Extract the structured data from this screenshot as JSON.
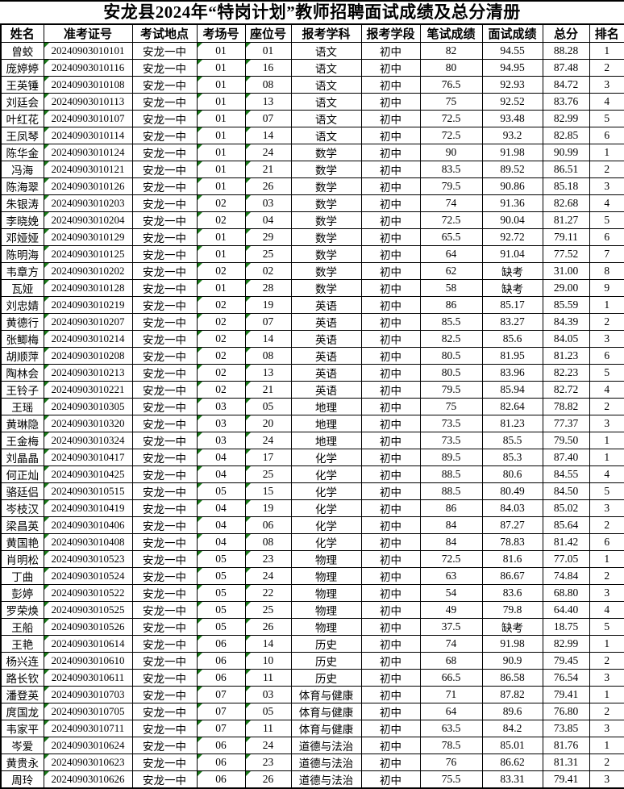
{
  "title": "安龙县2024年“特岗计划”教师招聘面试成绩及总分清册",
  "colors": {
    "flag_triangle": "#1a7a1a",
    "border": "#000000",
    "background": "#ffffff",
    "text": "#000000"
  },
  "table": {
    "headers": [
      "姓名",
      "准考证号",
      "考试地点",
      "考场号",
      "座位号",
      "报考学科",
      "报考学段",
      "笔试成绩",
      "面试成绩",
      "总分",
      "排名"
    ],
    "absent_label": "缺考",
    "rows": [
      [
        "曾蛟",
        "20240903010101",
        "安龙一中",
        "01",
        "01",
        "语文",
        "初中",
        "82",
        "94.55",
        "88.28",
        "1"
      ],
      [
        "庞婷婷",
        "20240903010116",
        "安龙一中",
        "01",
        "16",
        "语文",
        "初中",
        "80",
        "94.95",
        "87.48",
        "2"
      ],
      [
        "王英锤",
        "20240903010108",
        "安龙一中",
        "01",
        "08",
        "语文",
        "初中",
        "76.5",
        "92.93",
        "84.72",
        "3"
      ],
      [
        "刘廷会",
        "20240903010113",
        "安龙一中",
        "01",
        "13",
        "语文",
        "初中",
        "75",
        "92.52",
        "83.76",
        "4"
      ],
      [
        "叶红花",
        "20240903010107",
        "安龙一中",
        "01",
        "07",
        "语文",
        "初中",
        "72.5",
        "93.48",
        "82.99",
        "5"
      ],
      [
        "王凤琴",
        "20240903010114",
        "安龙一中",
        "01",
        "14",
        "语文",
        "初中",
        "72.5",
        "93.2",
        "82.85",
        "6"
      ],
      [
        "陈华金",
        "20240903010124",
        "安龙一中",
        "01",
        "24",
        "数学",
        "初中",
        "90",
        "91.98",
        "90.99",
        "1"
      ],
      [
        "冯海",
        "20240903010121",
        "安龙一中",
        "01",
        "21",
        "数学",
        "初中",
        "83.5",
        "89.52",
        "86.51",
        "2"
      ],
      [
        "陈海翠",
        "20240903010126",
        "安龙一中",
        "01",
        "26",
        "数学",
        "初中",
        "79.5",
        "90.86",
        "85.18",
        "3"
      ],
      [
        "朱银涛",
        "20240903010203",
        "安龙一中",
        "02",
        "03",
        "数学",
        "初中",
        "74",
        "91.36",
        "82.68",
        "4"
      ],
      [
        "李晓娩",
        "20240903010204",
        "安龙一中",
        "02",
        "04",
        "数学",
        "初中",
        "72.5",
        "90.04",
        "81.27",
        "5"
      ],
      [
        "邓娅娅",
        "20240903010129",
        "安龙一中",
        "01",
        "29",
        "数学",
        "初中",
        "65.5",
        "92.72",
        "79.11",
        "6"
      ],
      [
        "陈明海",
        "20240903010125",
        "安龙一中",
        "01",
        "25",
        "数学",
        "初中",
        "64",
        "91.04",
        "77.52",
        "7"
      ],
      [
        "韦章方",
        "20240903010202",
        "安龙一中",
        "02",
        "02",
        "数学",
        "初中",
        "62",
        "缺考",
        "31.00",
        "8"
      ],
      [
        "瓦娅",
        "20240903010128",
        "安龙一中",
        "01",
        "28",
        "数学",
        "初中",
        "58",
        "缺考",
        "29.00",
        "9"
      ],
      [
        "刘忠婧",
        "20240903010219",
        "安龙一中",
        "02",
        "19",
        "英语",
        "初中",
        "86",
        "85.17",
        "85.59",
        "1"
      ],
      [
        "黄德行",
        "20240903010207",
        "安龙一中",
        "02",
        "07",
        "英语",
        "初中",
        "85.5",
        "83.27",
        "84.39",
        "2"
      ],
      [
        "张鲫梅",
        "20240903010214",
        "安龙一中",
        "02",
        "14",
        "英语",
        "初中",
        "82.5",
        "85.6",
        "84.05",
        "3"
      ],
      [
        "胡顺萍",
        "20240903010208",
        "安龙一中",
        "02",
        "08",
        "英语",
        "初中",
        "80.5",
        "81.95",
        "81.23",
        "6"
      ],
      [
        "陶林会",
        "20240903010213",
        "安龙一中",
        "02",
        "13",
        "英语",
        "初中",
        "80.5",
        "83.96",
        "82.23",
        "5"
      ],
      [
        "王铃子",
        "20240903010221",
        "安龙一中",
        "02",
        "21",
        "英语",
        "初中",
        "79.5",
        "85.94",
        "82.72",
        "4"
      ],
      [
        "王瑶",
        "20240903010305",
        "安龙一中",
        "03",
        "05",
        "地理",
        "初中",
        "75",
        "82.64",
        "78.82",
        "2"
      ],
      [
        "黄琳隐",
        "20240903010320",
        "安龙一中",
        "03",
        "20",
        "地理",
        "初中",
        "73.5",
        "81.23",
        "77.37",
        "3"
      ],
      [
        "王金梅",
        "20240903010324",
        "安龙一中",
        "03",
        "24",
        "地理",
        "初中",
        "73.5",
        "85.5",
        "79.50",
        "1"
      ],
      [
        "刘晶晶",
        "20240903010417",
        "安龙一中",
        "04",
        "17",
        "化学",
        "初中",
        "89.5",
        "85.3",
        "87.40",
        "1"
      ],
      [
        "何正灿",
        "20240903010425",
        "安龙一中",
        "04",
        "25",
        "化学",
        "初中",
        "88.5",
        "80.6",
        "84.55",
        "4"
      ],
      [
        "骆廷侣",
        "20240903010515",
        "安龙一中",
        "05",
        "15",
        "化学",
        "初中",
        "88.5",
        "80.49",
        "84.50",
        "5"
      ],
      [
        "岑枝汉",
        "20240903010419",
        "安龙一中",
        "04",
        "19",
        "化学",
        "初中",
        "86",
        "84.03",
        "85.02",
        "3"
      ],
      [
        "梁昌英",
        "20240903010406",
        "安龙一中",
        "04",
        "06",
        "化学",
        "初中",
        "84",
        "87.27",
        "85.64",
        "2"
      ],
      [
        "黄国艳",
        "20240903010408",
        "安龙一中",
        "04",
        "08",
        "化学",
        "初中",
        "84",
        "78.83",
        "81.42",
        "6"
      ],
      [
        "肖明松",
        "20240903010523",
        "安龙一中",
        "05",
        "23",
        "物理",
        "初中",
        "72.5",
        "81.6",
        "77.05",
        "1"
      ],
      [
        "丁曲",
        "20240903010524",
        "安龙一中",
        "05",
        "24",
        "物理",
        "初中",
        "63",
        "86.67",
        "74.84",
        "2"
      ],
      [
        "彭婷",
        "20240903010522",
        "安龙一中",
        "05",
        "22",
        "物理",
        "初中",
        "54",
        "83.6",
        "68.80",
        "3"
      ],
      [
        "罗荣焕",
        "20240903010525",
        "安龙一中",
        "05",
        "25",
        "物理",
        "初中",
        "49",
        "79.8",
        "64.40",
        "4"
      ],
      [
        "王船",
        "20240903010526",
        "安龙一中",
        "05",
        "26",
        "物理",
        "初中",
        "37.5",
        "缺考",
        "18.75",
        "5"
      ],
      [
        "王艳",
        "20240903010614",
        "安龙一中",
        "06",
        "14",
        "历史",
        "初中",
        "74",
        "91.98",
        "82.99",
        "1"
      ],
      [
        "杨兴连",
        "20240903010610",
        "安龙一中",
        "06",
        "10",
        "历史",
        "初中",
        "68",
        "90.9",
        "79.45",
        "2"
      ],
      [
        "路长钦",
        "20240903010611",
        "安龙一中",
        "06",
        "11",
        "历史",
        "初中",
        "66.5",
        "86.58",
        "76.54",
        "3"
      ],
      [
        "潘登英",
        "20240903010703",
        "安龙一中",
        "07",
        "03",
        "体育与健康",
        "初中",
        "71",
        "87.82",
        "79.41",
        "1"
      ],
      [
        "庹国龙",
        "20240903010705",
        "安龙一中",
        "07",
        "05",
        "体育与健康",
        "初中",
        "64",
        "89.6",
        "76.80",
        "2"
      ],
      [
        "韦家平",
        "20240903010711",
        "安龙一中",
        "07",
        "11",
        "体育与健康",
        "初中",
        "63.5",
        "84.2",
        "73.85",
        "3"
      ],
      [
        "岑爱",
        "20240903010624",
        "安龙一中",
        "06",
        "24",
        "道德与法治",
        "初中",
        "78.5",
        "85.01",
        "81.76",
        "1"
      ],
      [
        "黄贵永",
        "20240903010623",
        "安龙一中",
        "06",
        "23",
        "道德与法治",
        "初中",
        "76",
        "86.62",
        "81.31",
        "2"
      ],
      [
        "周玲",
        "20240903010626",
        "安龙一中",
        "06",
        "26",
        "道德与法治",
        "初中",
        "75.5",
        "83.31",
        "79.41",
        "3"
      ]
    ]
  }
}
